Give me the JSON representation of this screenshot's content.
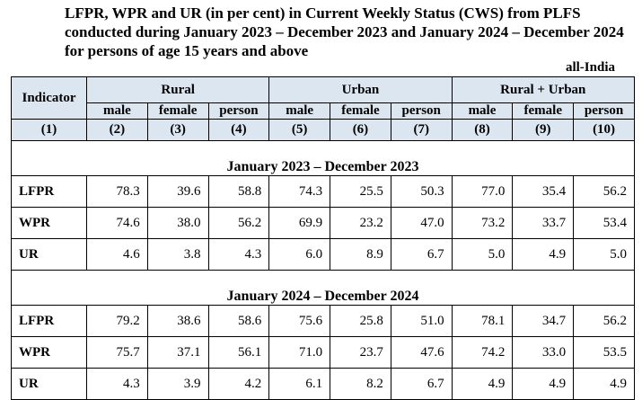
{
  "title": "LFPR, WPR and UR (in per cent) in Current Weekly Status (CWS) from PLFS conducted during January 2023 – December 2023 and January 2024 – December 2024 for persons of age 15 years and above",
  "region": "all-India",
  "table": {
    "indicator_header": "Indicator",
    "groups": [
      "Rural",
      "Urban",
      "Rural + Urban"
    ],
    "subheaders": [
      "male",
      "female",
      "person",
      "male",
      "female",
      "person",
      "male",
      "female",
      "person"
    ],
    "col_numbers": [
      "(1)",
      "(2)",
      "(3)",
      "(4)",
      "(5)",
      "(6)",
      "(7)",
      "(8)",
      "(9)",
      "(10)"
    ],
    "periods": [
      {
        "label": "January 2023 – December 2023",
        "rows": [
          {
            "indicator": "LFPR",
            "values": [
              "78.3",
              "39.6",
              "58.8",
              "74.3",
              "25.5",
              "50.3",
              "77.0",
              "35.4",
              "56.2"
            ]
          },
          {
            "indicator": "WPR",
            "values": [
              "74.6",
              "38.0",
              "56.2",
              "69.9",
              "23.2",
              "47.0",
              "73.2",
              "33.7",
              "53.4"
            ]
          },
          {
            "indicator": "UR",
            "values": [
              "4.6",
              "3.8",
              "4.3",
              "6.0",
              "8.9",
              "6.7",
              "5.0",
              "4.9",
              "5.0"
            ]
          }
        ]
      },
      {
        "label": "January 2024 – December 2024",
        "rows": [
          {
            "indicator": "LFPR",
            "values": [
              "79.2",
              "38.6",
              "58.6",
              "75.6",
              "25.8",
              "51.0",
              "78.1",
              "34.7",
              "56.2"
            ]
          },
          {
            "indicator": "WPR",
            "values": [
              "75.7",
              "37.1",
              "56.1",
              "71.0",
              "23.7",
              "47.6",
              "74.2",
              "33.0",
              "53.5"
            ]
          },
          {
            "indicator": "UR",
            "values": [
              "4.3",
              "3.9",
              "4.2",
              "6.1",
              "8.2",
              "6.7",
              "4.9",
              "4.9",
              "4.9"
            ]
          }
        ]
      }
    ]
  },
  "colors": {
    "header_bg": "#dce6f1",
    "border": "#000000"
  }
}
